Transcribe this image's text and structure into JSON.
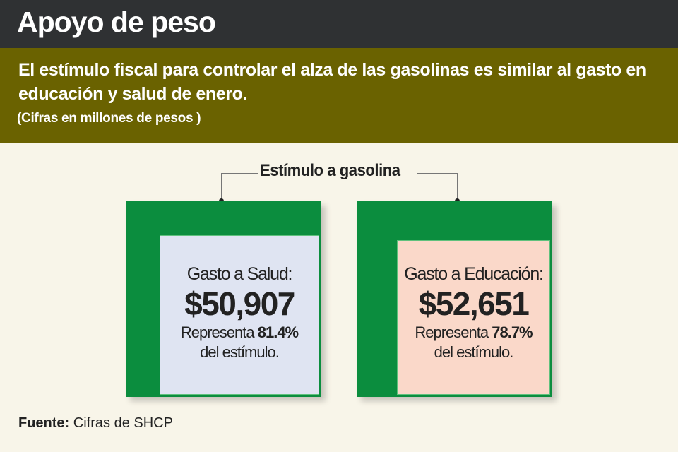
{
  "header": {
    "title": "Apoyo de peso"
  },
  "subtitle": "El estímulo fiscal para controlar el alza de las gasolinas es similar al gasto en educación y salud de enero.",
  "note": "(Cifras en millones de pesos )",
  "bracket_label": "Estímulo a gasolina",
  "colors": {
    "header": "#2f3133",
    "band": "#6a6200",
    "stimulus": "#0b8d3e",
    "salud": "#dfe4f2",
    "educacion": "#fad8c9",
    "background": "#f8f5e9"
  },
  "cards": [
    {
      "label": "Gasto a Salud:",
      "amount": "$50,907",
      "represent_prefix": "Representa",
      "percent": "81.4%",
      "suffix": "del estímulo."
    },
    {
      "label": "Gasto a Educación:",
      "amount": "$52,651",
      "represent_prefix": "Representa",
      "percent": "78.7%",
      "suffix": "del estímulo."
    }
  ],
  "source": {
    "label": "Fuente:",
    "text": "Cifras de SHCP"
  }
}
